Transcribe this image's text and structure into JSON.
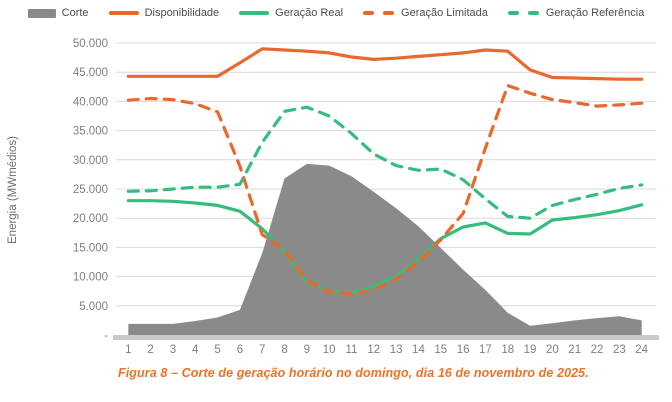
{
  "legend": {
    "items": [
      {
        "label": "Corte",
        "swatch": "area",
        "color": "#8a8a8a"
      },
      {
        "label": "Disponibilidade",
        "swatch": "solid-line",
        "color": "#e8682d"
      },
      {
        "label": "Geração Real",
        "swatch": "solid-line",
        "color": "#35bd7d"
      },
      {
        "label": "Geração Limitada",
        "swatch": "dashed-line",
        "color": "#e8682d"
      },
      {
        "label": "Geração Referência",
        "swatch": "dashed-line",
        "color": "#35bd7d"
      }
    ]
  },
  "y_axis": {
    "title": "Energia (MWmédios)",
    "tick_labels": [
      "50.000",
      "45.000",
      "40.000",
      "35.000",
      "30.000",
      "25.000",
      "20.000",
      "15.000",
      "10.000",
      "5.000",
      "-"
    ]
  },
  "x_axis": {
    "labels": [
      "1",
      "2",
      "3",
      "4",
      "5",
      "6",
      "7",
      "8",
      "9",
      "10",
      "11",
      "12",
      "13",
      "14",
      "15",
      "16",
      "17",
      "18",
      "19",
      "20",
      "21",
      "22",
      "23",
      "24"
    ]
  },
  "caption": "Figura 8 – Corte de geração horário no domingo, dia 16 de novembro de 2025.",
  "colors": {
    "orange": "#e8682d",
    "green": "#35bd7d",
    "area_gray": "#8a8a8a",
    "grid": "#d9d9d9",
    "axis_band": "#c9c9c9",
    "tick_text": "#7f7f7f",
    "caption_text": "#ed7224"
  },
  "chart_data": {
    "type": "area+line",
    "title": "",
    "xlabel": "",
    "ylabel": "Energia (MWmédios)",
    "ylim": [
      0,
      50000
    ],
    "grid": "horizontal",
    "legend_position": "top",
    "x": [
      1,
      2,
      3,
      4,
      5,
      6,
      7,
      8,
      9,
      10,
      11,
      12,
      13,
      14,
      15,
      16,
      17,
      18,
      19,
      20,
      21,
      22,
      23,
      24
    ],
    "series": [
      {
        "name": "Corte",
        "type": "area",
        "style": "solid",
        "color": "#8a8a8a",
        "values": [
          1900,
          1900,
          1900,
          2400,
          3000,
          4300,
          14000,
          26800,
          29300,
          29000,
          27200,
          24500,
          21700,
          18600,
          14900,
          11200,
          7700,
          3800,
          1600,
          2000,
          2500,
          2900,
          3200,
          2500
        ]
      },
      {
        "name": "Disponibilidade",
        "type": "line",
        "style": "solid",
        "color": "#e8682d",
        "values": [
          44300,
          44300,
          44300,
          44300,
          44300,
          46600,
          49000,
          48800,
          48600,
          48300,
          47600,
          47200,
          47400,
          47700,
          48000,
          48300,
          48800,
          48600,
          45400,
          44100,
          44000,
          43900,
          43800,
          43800
        ]
      },
      {
        "name": "Geração Real",
        "type": "line",
        "style": "solid",
        "color": "#35bd7d",
        "values": [
          23000,
          23000,
          22900,
          22600,
          22200,
          21200,
          18200,
          14200,
          9000,
          7500,
          7200,
          8300,
          10000,
          13000,
          16500,
          18500,
          19200,
          17400,
          17300,
          19700,
          20100,
          20600,
          21300,
          22300
        ]
      },
      {
        "name": "Geração Limitada",
        "type": "line",
        "style": "dashed",
        "color": "#e8682d",
        "values": [
          40200,
          40500,
          40300,
          39600,
          38200,
          28900,
          17200,
          14500,
          9200,
          7400,
          7000,
          7800,
          9600,
          12600,
          16300,
          20800,
          32000,
          42700,
          41400,
          40300,
          39800,
          39200,
          39400,
          39700
        ]
      },
      {
        "name": "Geração Referência",
        "type": "line",
        "style": "dashed",
        "color": "#35bd7d",
        "values": [
          24600,
          24700,
          25000,
          25300,
          25300,
          25800,
          33000,
          38300,
          39000,
          37500,
          34500,
          31000,
          29000,
          28200,
          28400,
          26600,
          23300,
          20300,
          20000,
          22200,
          23200,
          24100,
          25100,
          25700
        ]
      }
    ]
  }
}
